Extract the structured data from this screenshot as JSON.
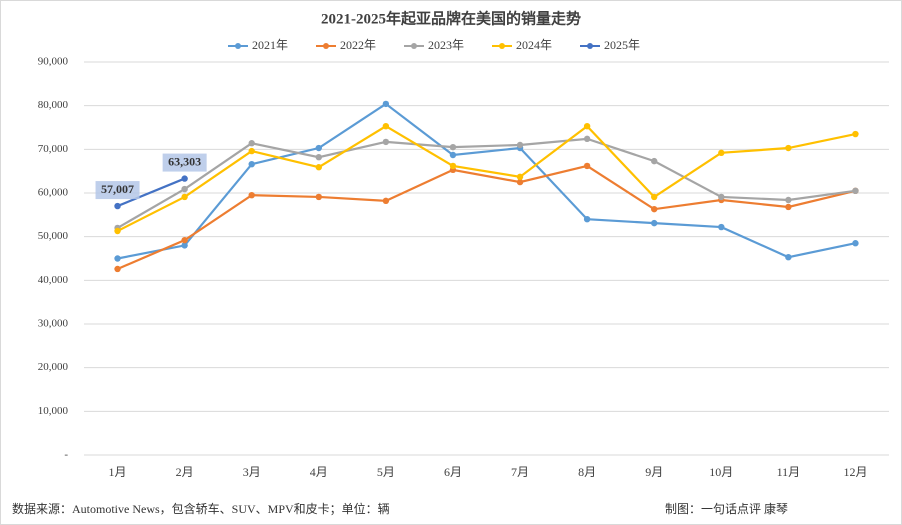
{
  "chart_data": {
    "type": "line",
    "title": "2021-2025年起亚品牌在美国的销量走势",
    "categories": [
      "1月",
      "2月",
      "3月",
      "4月",
      "5月",
      "6月",
      "7月",
      "8月",
      "9月",
      "10月",
      "11月",
      "12月"
    ],
    "series": [
      {
        "name": "2021年",
        "color": "#5b9bd5",
        "values": [
          45000,
          48000,
          66600,
          70300,
          80400,
          68700,
          70300,
          54000,
          53100,
          52200,
          45300,
          48500
        ]
      },
      {
        "name": "2022年",
        "color": "#ed7d31",
        "values": [
          42600,
          49200,
          59500,
          59100,
          58200,
          65300,
          62500,
          66200,
          56300,
          58400,
          56800,
          60500
        ]
      },
      {
        "name": "2023年",
        "color": "#a5a5a5",
        "values": [
          52000,
          60900,
          71400,
          68200,
          71700,
          70500,
          71000,
          72400,
          67300,
          59100,
          58400,
          60500
        ]
      },
      {
        "name": "2024年",
        "color": "#ffc000",
        "values": [
          51300,
          59100,
          69600,
          65900,
          75300,
          66200,
          63700,
          75300,
          59100,
          69200,
          70300,
          73500
        ]
      },
      {
        "name": "2025年",
        "color": "#4472c4",
        "values": [
          57007,
          63303,
          null,
          null,
          null,
          null,
          null,
          null,
          null,
          null,
          null,
          null
        ],
        "value_labels": [
          "57,007",
          "63,303",
          null,
          null,
          null,
          null,
          null,
          null,
          null,
          null,
          null,
          null
        ]
      }
    ],
    "ylim": [
      0,
      90000
    ],
    "yticks": [
      {
        "value": 0,
        "label": "-"
      },
      {
        "value": 10000,
        "label": "10,000"
      },
      {
        "value": 20000,
        "label": "20,000"
      },
      {
        "value": 30000,
        "label": "30,000"
      },
      {
        "value": 40000,
        "label": "40,000"
      },
      {
        "value": 50000,
        "label": "50,000"
      },
      {
        "value": 60000,
        "label": "60,000"
      },
      {
        "value": 70000,
        "label": "70,000"
      },
      {
        "value": 80000,
        "label": "80,000"
      },
      {
        "value": 90000,
        "label": "90,000"
      }
    ],
    "grid": true,
    "legend": "top",
    "source": "数据来源：Automotive News，包含轿车、SUV、MPV和皮卡；单位：辆",
    "credit": "制图：一句话点评  康琴"
  }
}
